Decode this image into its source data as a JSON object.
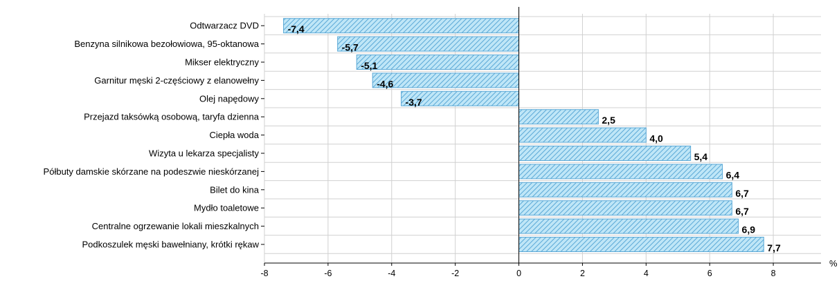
{
  "chart_data": {
    "type": "bar",
    "orientation": "horizontal",
    "categories": [
      "Odtwarzacz DVD",
      "Benzyna silnikowa bezołowiowa, 95-oktanowa",
      "Mikser elektryczny",
      "Garnitur męski 2-częściowy z elanowełny",
      "Olej napędowy",
      "Przejazd taksówką osobową, taryfa dzienna",
      "Ciepła woda",
      "Wizyta u lekarza specjalisty",
      "Półbuty damskie skórzane na podeszwie nieskórzanej",
      "Bilet do kina",
      "Mydło toaletowe",
      "Centralne ogrzewanie lokali mieszkalnych",
      "Podkoszulek męski bawełniany, krótki rękaw"
    ],
    "values": [
      -7.4,
      -5.7,
      -5.1,
      -4.6,
      -3.7,
      2.5,
      4.0,
      5.4,
      6.4,
      6.7,
      6.7,
      6.9,
      7.7
    ],
    "value_labels": [
      "-7,4",
      "-5,7",
      "-5,1",
      "-4,6",
      "-3,7",
      "2,5",
      "4,0",
      "5,4",
      "6,4",
      "6,7",
      "6,7",
      "6,9",
      "7,7"
    ],
    "x_ticks": [
      -8,
      -6,
      -4,
      -2,
      0,
      2,
      4,
      6,
      8
    ],
    "x_tick_labels": [
      "-8",
      "-6",
      "-4",
      "-2",
      "0",
      "2",
      "4",
      "6",
      "8"
    ],
    "xlim": [
      -8,
      9.5
    ],
    "x_unit": "%",
    "grid": true,
    "legend": false,
    "bar_color": "#bfe6f7",
    "bar_stripe_color": "#5aa8d6"
  }
}
